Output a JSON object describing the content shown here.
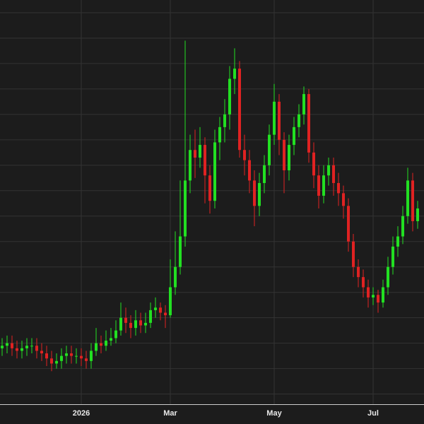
{
  "chart_data": {
    "type": "candlestick",
    "categories": [
      null,
      null,
      null,
      null,
      null,
      null,
      null,
      null,
      null,
      null,
      null,
      null,
      null,
      null,
      null,
      null,
      "2026",
      null,
      null,
      null,
      null,
      null,
      null,
      null,
      null,
      null,
      null,
      null,
      null,
      null,
      null,
      null,
      null,
      null,
      "Mar",
      null,
      null,
      null,
      null,
      null,
      null,
      null,
      null,
      null,
      null,
      null,
      null,
      null,
      null,
      null,
      null,
      null,
      null,
      null,
      null,
      "May",
      null,
      null,
      null,
      null,
      null,
      null,
      null,
      null,
      null,
      null,
      null,
      null,
      null,
      null,
      null,
      null,
      null,
      null,
      null,
      "Jul",
      null,
      null,
      null,
      null,
      null,
      null,
      null,
      null,
      null
    ],
    "open": [
      1.8,
      1.9,
      2.0,
      1.8,
      1.7,
      1.8,
      1.9,
      1.9,
      1.7,
      1.6,
      1.4,
      1.2,
      1.3,
      1.5,
      1.6,
      1.5,
      1.5,
      1.4,
      1.3,
      1.7,
      2.0,
      1.9,
      2.1,
      2.2,
      2.5,
      3.0,
      2.8,
      2.6,
      2.9,
      2.7,
      2.8,
      3.3,
      3.4,
      3.2,
      3.1,
      4.2,
      5.0,
      6.2,
      8.4,
      9.6,
      9.3,
      9.8,
      8.6,
      7.6,
      9.9,
      10.5,
      11.0,
      12.4,
      12.8,
      9.6,
      9.2,
      8.4,
      7.4,
      8.3,
      9.0,
      10.2,
      11.5,
      10.0,
      8.8,
      9.8,
      10.5,
      11.0,
      11.8,
      9.5,
      8.6,
      7.8,
      8.6,
      9.0,
      8.3,
      7.9,
      7.4,
      6.0,
      5.0,
      4.6,
      4.2,
      3.8,
      3.9,
      3.6,
      4.2,
      5.0,
      5.8,
      6.2,
      7.0,
      8.4,
      6.8
    ],
    "high": [
      2.2,
      2.3,
      2.3,
      2.1,
      2.1,
      2.2,
      2.2,
      2.2,
      2.0,
      1.9,
      1.7,
      1.6,
      1.8,
      1.9,
      1.9,
      1.8,
      1.8,
      1.7,
      2.0,
      2.6,
      2.3,
      2.5,
      2.6,
      2.9,
      3.6,
      3.4,
      3.1,
      3.3,
      3.2,
      3.2,
      3.6,
      3.8,
      3.6,
      3.5,
      5.3,
      6.4,
      8.4,
      13.9,
      10.2,
      10.4,
      10.5,
      10.1,
      9.0,
      10.4,
      10.9,
      11.6,
      12.9,
      13.6,
      13.1,
      10.2,
      9.6,
      8.8,
      8.7,
      9.4,
      10.6,
      12.2,
      11.8,
      10.3,
      10.2,
      10.9,
      11.4,
      12.1,
      12.0,
      9.9,
      9.0,
      9.0,
      9.3,
      9.3,
      8.7,
      8.2,
      7.7,
      6.3,
      5.3,
      4.9,
      4.5,
      4.2,
      4.1,
      4.5,
      5.4,
      6.2,
      6.6,
      7.4,
      8.9,
      8.7,
      7.6
    ],
    "low": [
      1.5,
      1.6,
      1.5,
      1.4,
      1.4,
      1.5,
      1.6,
      1.4,
      1.3,
      1.1,
      0.9,
      1.0,
      1.0,
      1.2,
      1.2,
      1.2,
      1.1,
      1.0,
      1.0,
      1.5,
      1.6,
      1.7,
      1.9,
      2.0,
      2.3,
      2.4,
      2.2,
      2.3,
      2.4,
      2.4,
      2.6,
      3.0,
      2.9,
      2.6,
      3.0,
      3.9,
      4.7,
      5.8,
      7.9,
      8.5,
      8.9,
      7.5,
      7.1,
      7.3,
      9.2,
      9.9,
      10.4,
      11.8,
      9.3,
      8.6,
      7.9,
      6.6,
      7.0,
      7.9,
      8.6,
      9.8,
      9.4,
      7.9,
      8.4,
      9.4,
      10.1,
      10.6,
      9.1,
      8.1,
      7.3,
      7.5,
      8.2,
      7.8,
      7.4,
      6.9,
      5.6,
      4.6,
      4.2,
      3.8,
      3.4,
      3.5,
      3.2,
      3.4,
      3.9,
      4.7,
      5.4,
      5.9,
      6.7,
      6.4,
      6.5
    ],
    "close": [
      1.9,
      2.0,
      1.8,
      1.7,
      1.8,
      1.9,
      1.9,
      1.7,
      1.6,
      1.4,
      1.2,
      1.3,
      1.5,
      1.6,
      1.5,
      1.5,
      1.4,
      1.3,
      1.7,
      2.0,
      1.9,
      2.1,
      2.2,
      2.5,
      3.0,
      2.8,
      2.6,
      2.9,
      2.7,
      2.8,
      3.3,
      3.4,
      3.2,
      3.1,
      4.2,
      5.0,
      6.2,
      8.4,
      9.6,
      9.3,
      9.8,
      8.6,
      7.6,
      9.9,
      10.5,
      11.0,
      12.4,
      12.8,
      9.6,
      9.2,
      8.4,
      7.4,
      8.3,
      9.0,
      10.2,
      11.5,
      10.0,
      8.8,
      9.8,
      10.5,
      11.0,
      11.8,
      9.5,
      8.6,
      7.8,
      8.6,
      9.0,
      8.3,
      7.9,
      7.4,
      6.0,
      5.0,
      4.6,
      4.2,
      3.8,
      3.9,
      3.6,
      4.2,
      5.0,
      5.8,
      6.2,
      7.0,
      8.4,
      6.8,
      7.3
    ],
    "up_color": "#22e022",
    "down_color": "#e02222",
    "ylim": [
      -0.4,
      15.5
    ],
    "yticks": [
      0,
      1,
      2,
      3,
      4,
      5,
      6,
      7,
      8,
      9,
      10,
      11,
      12,
      13,
      14,
      15
    ],
    "grid": true
  }
}
